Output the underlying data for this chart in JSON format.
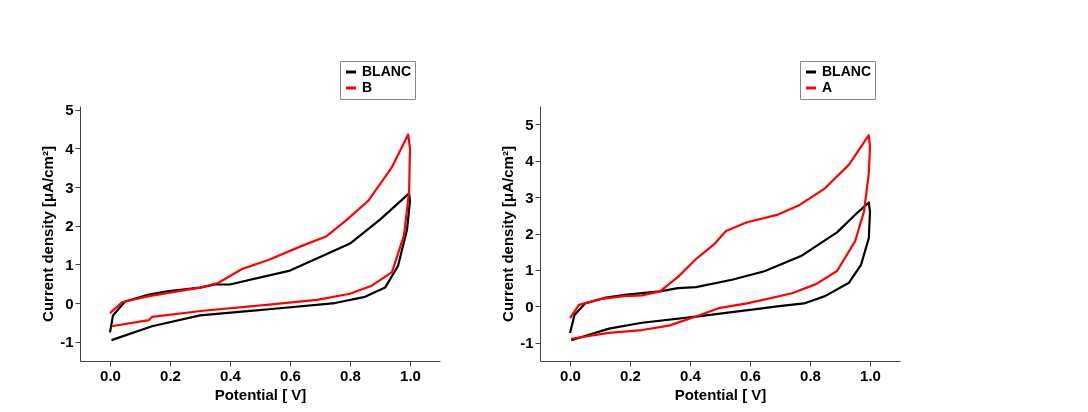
{
  "chart_data": [
    {
      "type": "line",
      "xlabel": "Potential [ V]",
      "ylabel": "Current density [μA/cm²]",
      "xlim": [
        -0.1,
        1.1
      ],
      "ylim": [
        -1.5,
        5.1
      ],
      "xticks": [
        {
          "value": 0,
          "label": "0.0"
        },
        {
          "value": 0.2,
          "label": "0.2"
        },
        {
          "value": 0.4,
          "label": "0.4"
        },
        {
          "value": 0.6,
          "label": "0.6"
        },
        {
          "value": 0.8,
          "label": "0.8"
        },
        {
          "value": 1,
          "label": "1.0"
        }
      ],
      "yticks": [
        -1,
        0,
        1,
        2,
        3,
        4,
        5
      ],
      "grid": false,
      "legend": "top right",
      "marker": "none",
      "line_style": "solid",
      "series": [
        {
          "name": "BLANC",
          "color": "#000000",
          "x": [
            0,
            0.01,
            0.05,
            0.13,
            0.19,
            0.3,
            0.35,
            0.4,
            0.6,
            0.8,
            0.9,
            0.997,
            1.0,
            0.99,
            0.96,
            0.917,
            0.85,
            0.75,
            0.53,
            0.3,
            0.14,
            0.005
          ],
          "values": [
            -0.76,
            -0.32,
            0.04,
            0.22,
            0.3,
            0.4,
            0.48,
            0.48,
            0.84,
            1.54,
            2.16,
            2.84,
            2.64,
            1.9,
            0.96,
            0.4,
            0.16,
            0,
            -0.16,
            -0.32,
            -0.6,
            -0.96
          ]
        },
        {
          "name": "B",
          "color": "#ff0000",
          "x": [
            0,
            0.04,
            0.13,
            0.24,
            0.3,
            0.36,
            0.44,
            0.53,
            0.64,
            0.72,
            0.79,
            0.86,
            0.94,
            0.994,
            1.0,
            0.997,
            0.98,
            0.94,
            0.87,
            0.8,
            0.69,
            0.53,
            0.31,
            0.14,
            0.13,
            0.005
          ],
          "values": [
            -0.26,
            0.02,
            0.18,
            0.32,
            0.4,
            0.52,
            0.88,
            1.12,
            1.48,
            1.72,
            2.16,
            2.64,
            3.52,
            4.36,
            4.0,
            2.88,
            1.76,
            0.8,
            0.44,
            0.24,
            0.08,
            -0.04,
            -0.2,
            -0.36,
            -0.44,
            -0.6
          ]
        }
      ]
    },
    {
      "type": "line",
      "xlabel": "Potential [ V]",
      "ylabel": "Current density [μA/cm²]",
      "xlim": [
        -0.1,
        1.1
      ],
      "ylim": [
        -1.5,
        5.5
      ],
      "xticks": [
        {
          "value": 0,
          "label": "0.0"
        },
        {
          "value": 0.2,
          "label": "0.2"
        },
        {
          "value": 0.4,
          "label": "0.4"
        },
        {
          "value": 0.6,
          "label": "0.6"
        },
        {
          "value": 0.8,
          "label": "0.8"
        },
        {
          "value": 1,
          "label": "1.0"
        }
      ],
      "yticks": [
        -1,
        0,
        1,
        2,
        3,
        4,
        5
      ],
      "grid": false,
      "legend": "top right",
      "marker": "none",
      "line_style": "solid",
      "series": [
        {
          "name": "BLANC",
          "color": "#000000",
          "x": [
            0,
            0.015,
            0.05,
            0.12,
            0.19,
            0.3,
            0.36,
            0.42,
            0.54,
            0.65,
            0.77,
            0.89,
            0.95,
            0.996,
            1.0,
            0.996,
            0.97,
            0.93,
            0.85,
            0.78,
            0.69,
            0.54,
            0.42,
            0.24,
            0.13,
            0.004
          ],
          "values": [
            -0.73,
            -0.24,
            0.08,
            0.24,
            0.32,
            0.41,
            0.5,
            0.53,
            0.73,
            0.97,
            1.38,
            2.03,
            2.51,
            2.85,
            2.6,
            1.87,
            1.14,
            0.65,
            0.28,
            0.08,
            0,
            -0.16,
            -0.28,
            -0.45,
            -0.61,
            -0.93
          ]
        },
        {
          "name": "A",
          "color": "#ff0000",
          "x": [
            0,
            0.03,
            0.1,
            0.18,
            0.24,
            0.3,
            0.36,
            0.42,
            0.48,
            0.52,
            0.59,
            0.69,
            0.76,
            0.85,
            0.93,
            0.996,
            1.0,
            0.996,
            0.98,
            0.95,
            0.89,
            0.82,
            0.74,
            0.59,
            0.5,
            0.42,
            0.33,
            0.24,
            0.13,
            0.004
          ],
          "values": [
            -0.32,
            0.04,
            0.2,
            0.28,
            0.3,
            0.41,
            0.81,
            1.3,
            1.7,
            2.07,
            2.31,
            2.51,
            2.76,
            3.24,
            3.89,
            4.7,
            4.38,
            3.65,
            2.6,
            1.78,
            0.97,
            0.61,
            0.36,
            0.08,
            -0.04,
            -0.28,
            -0.53,
            -0.65,
            -0.73,
            -0.89
          ]
        }
      ]
    }
  ]
}
